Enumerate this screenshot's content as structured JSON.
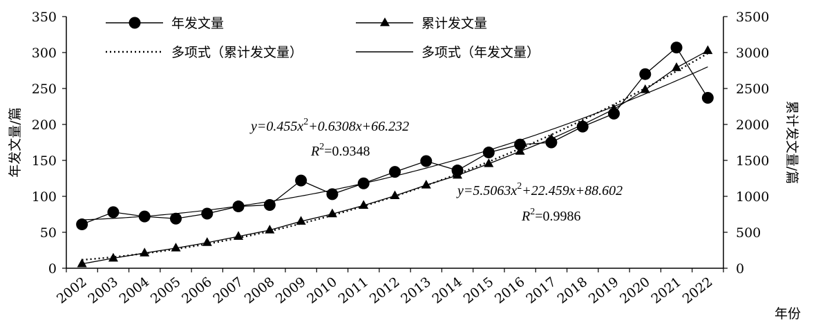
{
  "chart_data": {
    "type": "line",
    "x": [
      "2002",
      "2003",
      "2004",
      "2005",
      "2006",
      "2007",
      "2008",
      "2009",
      "2010",
      "2011",
      "2012",
      "2013",
      "2014",
      "2015",
      "2016",
      "2017",
      "2018",
      "2019",
      "2020",
      "2021",
      "2022"
    ],
    "series": [
      {
        "name": "年发文量",
        "axis": "left",
        "marker": "circle",
        "values": [
          61,
          78,
          72,
          69,
          76,
          86,
          88,
          122,
          103,
          118,
          134,
          149,
          136,
          161,
          172,
          175,
          197,
          215,
          270,
          307,
          237
        ]
      },
      {
        "name": "累计发文量",
        "axis": "right",
        "marker": "triangle",
        "values": [
          61,
          139,
          211,
          280,
          356,
          442,
          530,
          652,
          755,
          873,
          1007,
          1156,
          1292,
          1453,
          1625,
          1800,
          1997,
          2212,
          2482,
          2789,
          3026
        ]
      },
      {
        "name": "多项式（累计发文量）",
        "axis": "right",
        "style": "dotted",
        "equation": {
          "a": 5.5063,
          "b": 22.459,
          "c": 88.602
        }
      },
      {
        "name": "多项式（年发文量）",
        "axis": "left",
        "style": "solid-thin",
        "equation": {
          "a": 0.455,
          "b": 0.6308,
          "c": 66.232
        }
      }
    ],
    "annotations": {
      "eq_annual_1": "y=0.455x",
      "eq_annual_2": "+0.6308x+66.232",
      "r2_annual": "=0.9348",
      "eq_cum_1": "y=5.5063x",
      "eq_cum_2": "+22.459x+88.602",
      "r2_cum": "=0.9986",
      "r_letter": "R",
      "sup2": "2"
    },
    "ylabel_left": "年发文量/篇",
    "ylabel_right": "累计发文量/篇",
    "xlabel": "年份",
    "ylim_left": [
      0,
      350
    ],
    "ylim_right": [
      0,
      3500
    ],
    "yticks_left": [
      "0",
      "50",
      "100",
      "150",
      "200",
      "250",
      "300",
      "350"
    ],
    "yticks_right": [
      "0",
      "500",
      "1000",
      "1500",
      "2000",
      "2500",
      "3000",
      "3500"
    ],
    "grid": false,
    "legend_position": "top"
  }
}
